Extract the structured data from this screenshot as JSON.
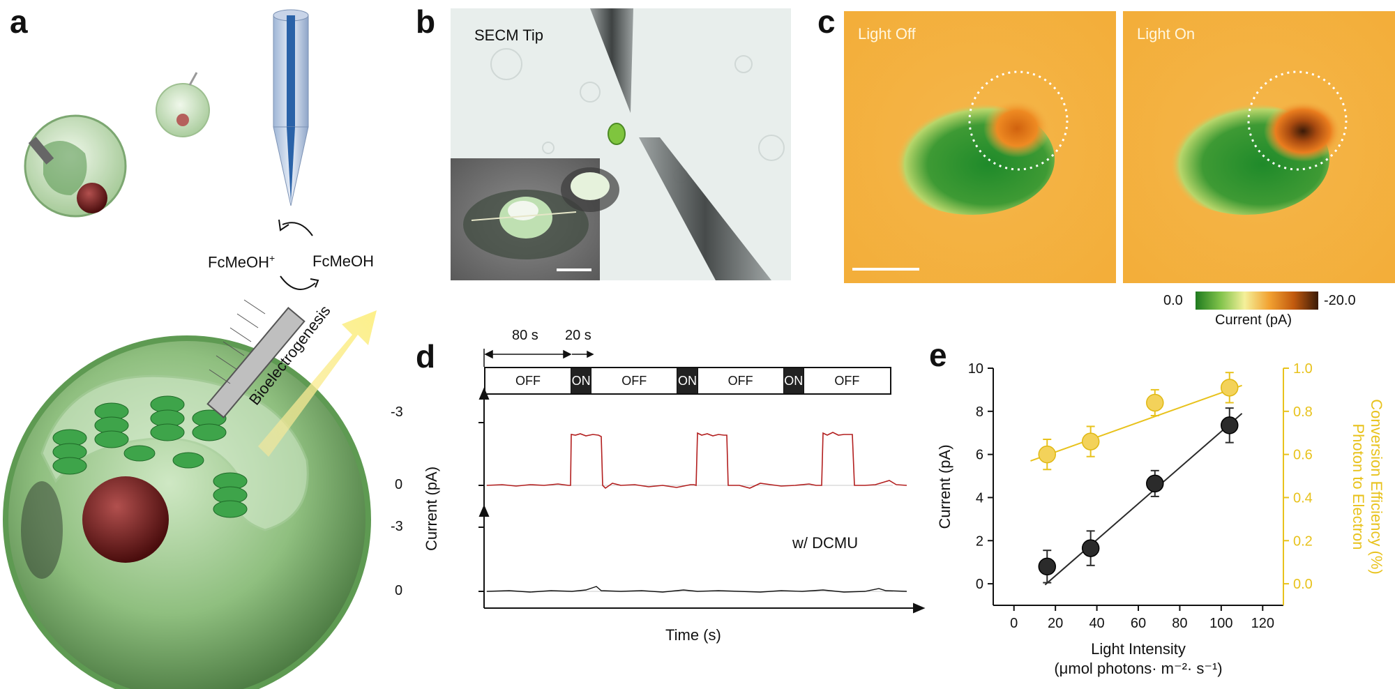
{
  "panels": {
    "a": {
      "letter": "a",
      "oxidized_label": "FcMeOH",
      "oxidized_sup": "+",
      "reduced_label": "FcMeOH",
      "arrow_label": "Bioelectrogenesis"
    },
    "b": {
      "letter": "b",
      "tip_label": "SECM Tip"
    },
    "c": {
      "letter": "c",
      "left_label": "Light Off",
      "right_label": "Light On",
      "colorbar": {
        "min_label": "0.0",
        "max_label": "-20.0",
        "title": "Current (pA)",
        "colors": [
          "#1f7a1f",
          "#7fc24a",
          "#f4f09a",
          "#f2a232",
          "#c25a0e",
          "#3a1a08"
        ]
      }
    },
    "d": {
      "letter": "d",
      "dur_off": "80 s",
      "dur_on": "20 s",
      "states": [
        "OFF",
        "ON",
        "OFF",
        "ON",
        "OFF",
        "ON",
        "OFF"
      ],
      "ylabel": "Current (pA)",
      "xlabel": "Time (s)",
      "tick_top": "-3",
      "tick_zero": "0",
      "dcmu_label": "w/ DCMU"
    },
    "e": {
      "letter": "e"
    }
  },
  "chart_data": {
    "type": "scatter",
    "xlabel": "Light Intensity",
    "xlabel_units": "(μmol photons· m⁻²· s⁻¹)",
    "ylabel_left": "Current (pA)",
    "ylabel_right_line1": "Photon to Electron",
    "ylabel_right_line2": "Conversion Efficiency (%)",
    "xlim": [
      -10,
      130
    ],
    "ylim_left": [
      -1,
      10
    ],
    "ylim_right": [
      -0.1,
      1.0
    ],
    "xticks": [
      0,
      20,
      40,
      60,
      80,
      100,
      120
    ],
    "yticks_left": [
      0,
      2,
      4,
      6,
      8,
      10
    ],
    "yticks_right": [
      0.0,
      0.2,
      0.4,
      0.6,
      0.8,
      1.0
    ],
    "colors": {
      "current": "#2a2a2a",
      "efficiency": "#e8c21c"
    },
    "series": [
      {
        "axis": "left",
        "x": [
          16,
          37,
          68,
          104
        ],
        "y": [
          0.8,
          1.65,
          4.65,
          7.35
        ],
        "err": [
          0.75,
          0.8,
          0.6,
          0.8
        ],
        "fit": [
          [
            15,
            -0.05
          ],
          [
            110,
            7.9
          ]
        ]
      },
      {
        "axis": "right",
        "x": [
          16,
          37,
          68,
          104
        ],
        "y": [
          0.6,
          0.66,
          0.84,
          0.91
        ],
        "err": [
          0.07,
          0.07,
          0.06,
          0.07
        ],
        "fit": [
          [
            8,
            0.57
          ],
          [
            110,
            0.92
          ]
        ]
      }
    ]
  }
}
